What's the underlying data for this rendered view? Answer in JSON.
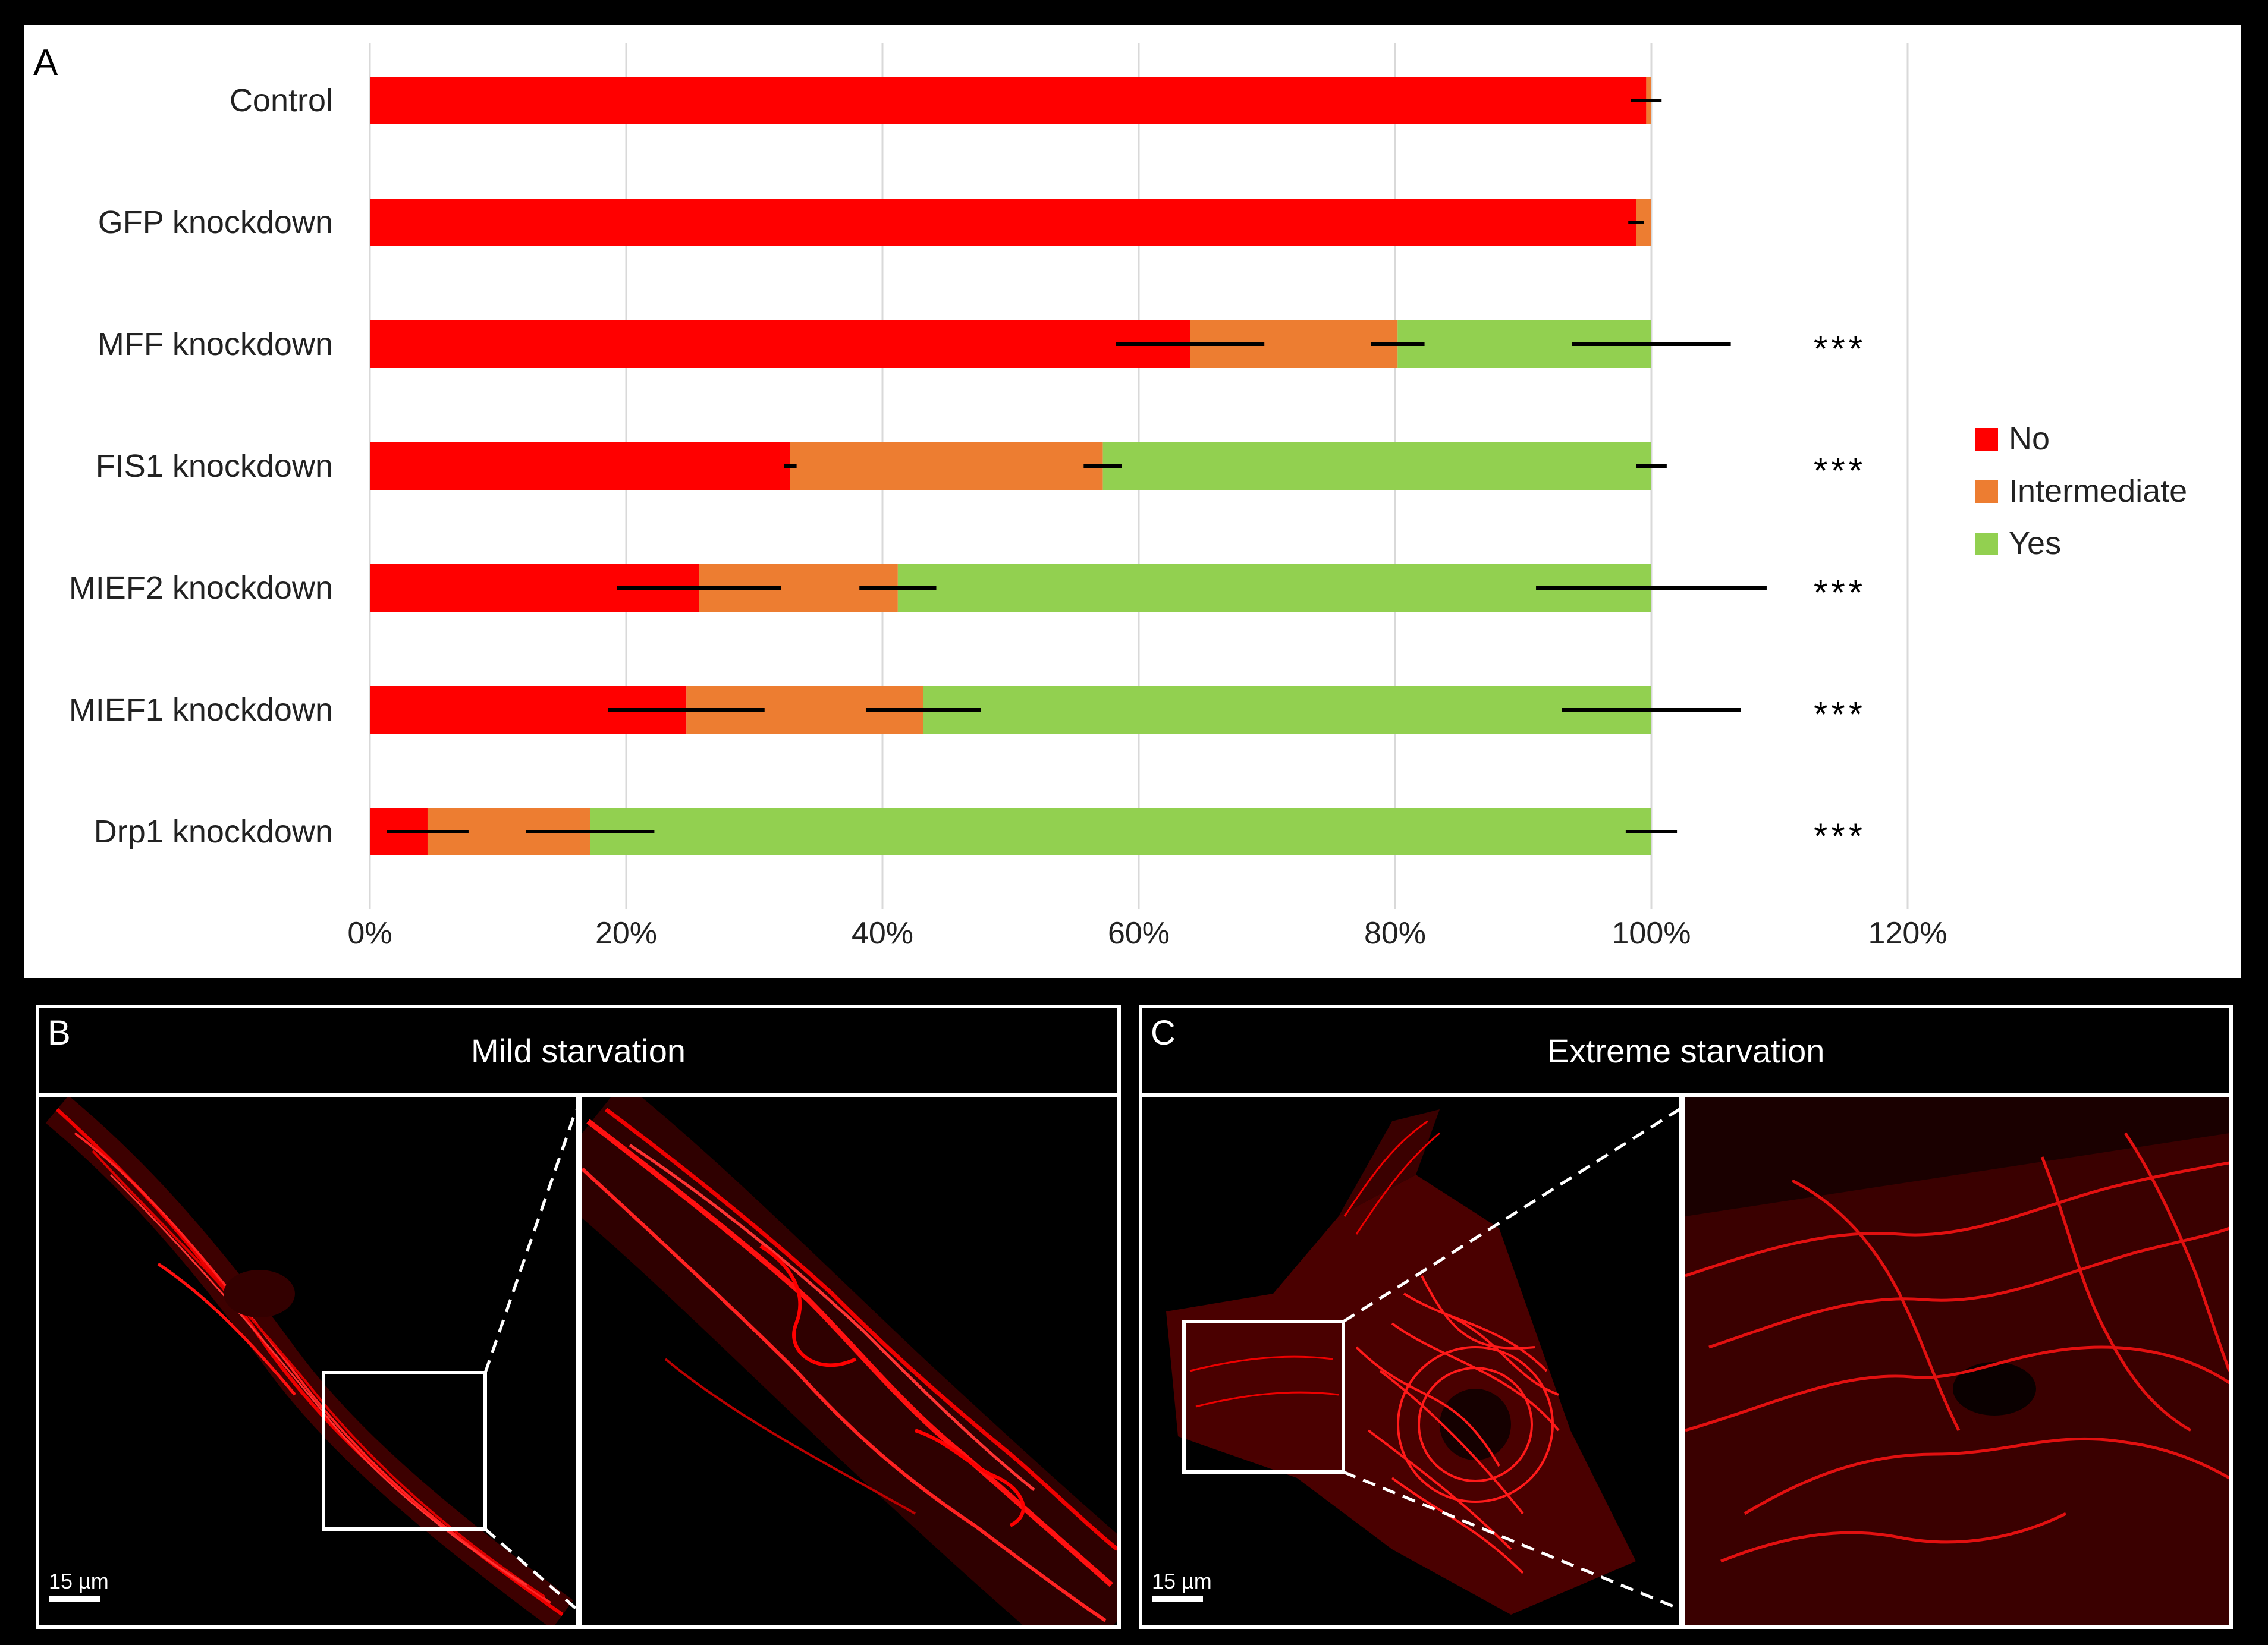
{
  "chart_data": {
    "type": "bar",
    "stacked": true,
    "orientation": "horizontal",
    "panel_label": "A",
    "categories": [
      "Control",
      "GFP knockdown",
      "MFF knockdown",
      "FIS1 knockdown",
      "MIEF2 knockdown",
      "MIEF1 knockdown",
      "Drp1 knockdown"
    ],
    "series": [
      {
        "name": "No",
        "color": "#ff0000",
        "values": [
          99.6,
          98.8,
          64.0,
          32.8,
          25.7,
          24.7,
          4.5
        ],
        "errors": [
          1.2,
          0.6,
          5.8,
          0.5,
          6.4,
          6.1,
          3.2
        ]
      },
      {
        "name": "Intermediate",
        "color": "#ed7d31",
        "values": [
          0.4,
          1.2,
          16.2,
          24.4,
          15.5,
          18.5,
          12.7
        ],
        "errors": [
          0,
          0,
          2.1,
          1.5,
          3.0,
          4.5,
          5.0
        ]
      },
      {
        "name": "Yes",
        "color": "#92d050",
        "values": [
          0.0,
          0.0,
          19.8,
          42.8,
          58.8,
          56.8,
          82.8
        ],
        "errors": [
          0,
          0,
          6.2,
          1.2,
          9.0,
          7.0,
          2.0
        ]
      }
    ],
    "significance": [
      "",
      "",
      "***",
      "***",
      "***",
      "***",
      "***"
    ],
    "xlim": [
      0,
      120
    ],
    "xticks": [
      "0%",
      "20%",
      "40%",
      "60%",
      "80%",
      "100%",
      "120%"
    ],
    "grid": true,
    "legend_position": "right"
  },
  "panels": {
    "b": {
      "letter": "B",
      "title": "Mild starvation",
      "scale_bar": "15 µm"
    },
    "c": {
      "letter": "C",
      "title": "Extreme starvation",
      "scale_bar": "15 µm"
    }
  },
  "colors": {
    "no": "#ff0000",
    "intermediate": "#ed7d31",
    "yes": "#92d050"
  }
}
